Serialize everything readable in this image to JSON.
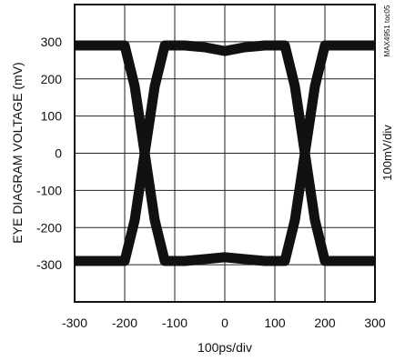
{
  "chart_data": {
    "type": "line",
    "xlabel": "100ps/div",
    "ylabel": "EYE DIAGRAM VOLTAGE (mV)",
    "right_label": "100mV/div",
    "corner_code": "MAX4951 toc05",
    "xlim": [
      -300,
      300
    ],
    "ylim": [
      -400,
      400
    ],
    "x_ticks": [
      "-300",
      "-200",
      "-100",
      "0",
      "100",
      "200",
      "300"
    ],
    "y_ticks": [
      "300",
      "200",
      "100",
      "0",
      "-100",
      "-200",
      "-300"
    ],
    "grid": true,
    "legend": "none",
    "series": [
      {
        "x": [
          -300,
          -240,
          -200,
          -180,
          -160,
          -140,
          -120,
          -80,
          -40,
          0,
          40,
          80,
          120,
          140,
          160,
          180,
          200,
          240,
          300
        ],
        "values": [
          290,
          290,
          290,
          180,
          0,
          -180,
          -290,
          -290,
          -285,
          -280,
          -285,
          -290,
          -290,
          -180,
          0,
          180,
          290,
          290,
          290
        ]
      },
      {
        "x": [
          -300,
          -240,
          -200,
          -180,
          -160,
          -140,
          -120,
          -80,
          -40,
          0,
          40,
          80,
          120,
          140,
          160,
          180,
          200,
          240,
          300
        ],
        "values": [
          -290,
          -290,
          -290,
          -180,
          0,
          180,
          290,
          290,
          285,
          275,
          285,
          290,
          290,
          180,
          0,
          -180,
          -290,
          -290,
          -290
        ]
      }
    ],
    "trace_color": "#111111"
  }
}
